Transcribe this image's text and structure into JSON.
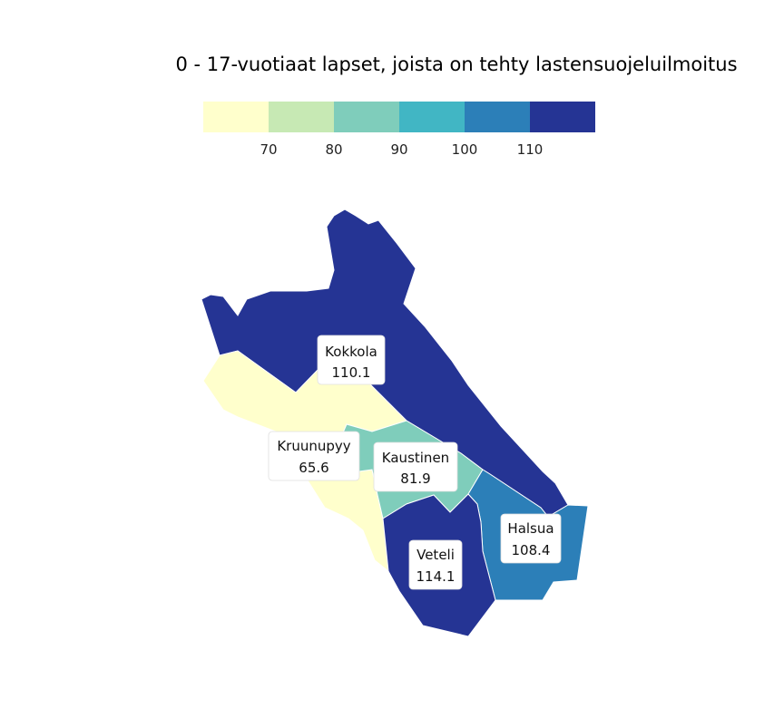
{
  "title": "0 - 17-vuotiaat lapset, joista on tehty lastensuojeluilmoitus",
  "legend": {
    "bins": [
      {
        "from": null,
        "to": 70,
        "color": "#ffffcc"
      },
      {
        "from": 70,
        "to": 80,
        "color": "#c7e9b4"
      },
      {
        "from": 80,
        "to": 90,
        "color": "#7fcdbb"
      },
      {
        "from": 90,
        "to": 100,
        "color": "#41b6c4"
      },
      {
        "from": 100,
        "to": 110,
        "color": "#2c7fb8"
      },
      {
        "from": 110,
        "to": null,
        "color": "#253494"
      }
    ],
    "ticks": [
      "70",
      "80",
      "90",
      "100",
      "110"
    ]
  },
  "regions": [
    {
      "name": "Kokkola",
      "value": 110.1,
      "value_label": "110.1"
    },
    {
      "name": "Kruunupyy",
      "value": 65.6,
      "value_label": "65.6"
    },
    {
      "name": "Kaustinen",
      "value": 81.9,
      "value_label": "81.9"
    },
    {
      "name": "Halsua",
      "value": 108.4,
      "value_label": "108.4"
    },
    {
      "name": "Veteli",
      "value": 114.1,
      "value_label": "114.1"
    }
  ]
}
